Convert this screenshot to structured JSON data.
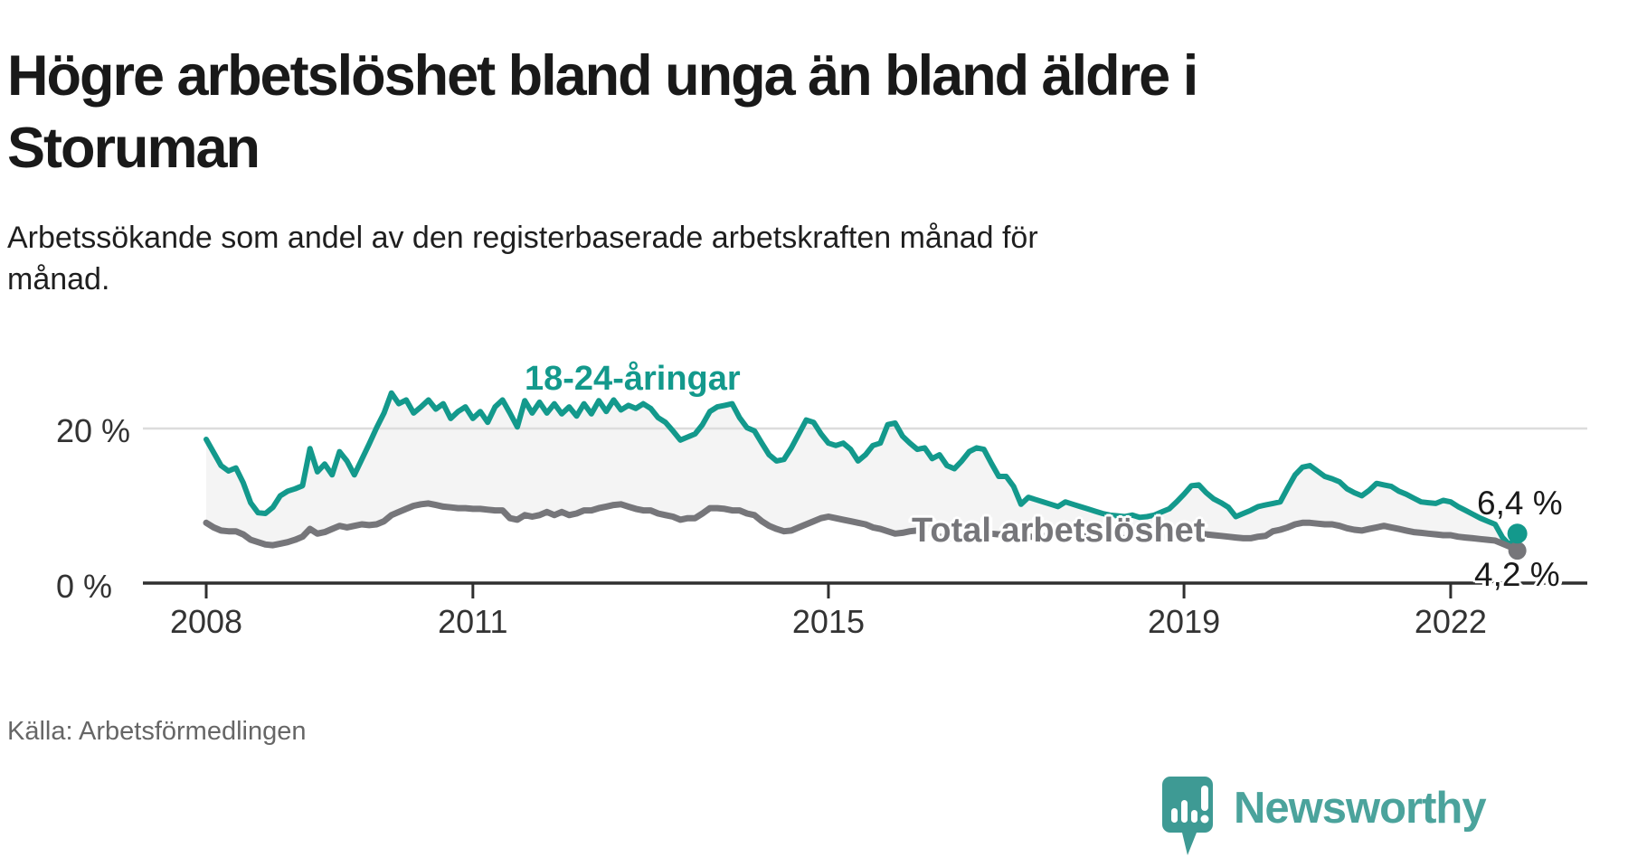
{
  "title": "Högre arbetslöshet bland unga än bland äldre i Storuman",
  "subtitle": "Arbetssökande som andel av den registerbaserade arbetskraften månad för månad.",
  "source": "Källa: Arbetsförmedlingen",
  "logo": {
    "text": "Newsworthy"
  },
  "colors": {
    "youth": "#13998C",
    "total": "#76767A",
    "area_fill": "#F4F4F4",
    "gridline": "#DCDCDC",
    "axis": "#2F2F2F",
    "title_text": "#191919",
    "logo_teal": "#3E9A94"
  },
  "chart_data": {
    "type": "line",
    "title": "Högre arbetslöshet bland unga än bland äldre i Storuman",
    "xlabel": "",
    "ylabel": "Arbetssökande som andel av den registerbaserade arbetskraften",
    "unit": "%",
    "freq": "monthly",
    "start": "2008-01",
    "end": "2022-10",
    "ylim": [
      0,
      26
    ],
    "grid": "single horizontal gridline at 20 %",
    "legend_position": "inline labels on lines",
    "yticks": [
      {
        "label": "0 %",
        "value": 0
      },
      {
        "label": "20 %",
        "value": 20
      }
    ],
    "xticks": [
      {
        "label": "2008",
        "year": 2008
      },
      {
        "label": "2011",
        "year": 2011
      },
      {
        "label": "2015",
        "year": 2015
      },
      {
        "label": "2019",
        "year": 2019
      },
      {
        "label": "2022",
        "year": 2022
      }
    ],
    "series": [
      {
        "name": "18-24-åringar",
        "color": "#13998C",
        "end_label": "6,4 %",
        "end_value": 6.4,
        "values": [
          18.6,
          16.9,
          15.2,
          14.5,
          14.9,
          13.0,
          10.4,
          9.1,
          9.0,
          9.8,
          11.3,
          11.9,
          12.2,
          12.6,
          17.4,
          14.4,
          15.4,
          14.0,
          17.0,
          15.8,
          14.0,
          16.0,
          18.0,
          20.1,
          22.0,
          24.6,
          23.2,
          23.7,
          22.0,
          22.8,
          23.7,
          22.5,
          23.2,
          21.3,
          22.2,
          22.8,
          21.3,
          22.2,
          20.8,
          22.8,
          23.7,
          22.0,
          20.2,
          23.6,
          22.0,
          23.4,
          22.0,
          23.2,
          21.9,
          22.8,
          21.6,
          23.2,
          21.9,
          23.6,
          22.2,
          23.7,
          22.4,
          23.0,
          22.6,
          23.2,
          22.6,
          21.4,
          20.8,
          19.7,
          18.5,
          18.9,
          19.3,
          20.5,
          22.2,
          22.8,
          23.0,
          23.2,
          21.4,
          20.1,
          19.7,
          18.1,
          16.6,
          15.8,
          16.0,
          17.5,
          19.3,
          21.1,
          20.8,
          19.3,
          18.1,
          17.8,
          18.1,
          17.3,
          15.8,
          16.6,
          17.8,
          18.1,
          20.5,
          20.7,
          19.0,
          18.1,
          17.3,
          17.5,
          16.1,
          16.6,
          15.2,
          14.8,
          15.8,
          17.0,
          17.5,
          17.3,
          15.5,
          13.8,
          13.8,
          12.5,
          10.2,
          11.1,
          10.8,
          10.5,
          10.2,
          9.9,
          10.5,
          10.2,
          9.9,
          9.6,
          9.3,
          9.0,
          8.8,
          8.7,
          8.6,
          8.8,
          8.5,
          8.6,
          8.8,
          9.2,
          9.6,
          10.5,
          11.5,
          12.6,
          12.7,
          11.7,
          10.9,
          10.4,
          9.8,
          8.6,
          9.0,
          9.4,
          9.9,
          10.1,
          10.3,
          10.5,
          12.3,
          14.0,
          15.0,
          15.2,
          14.5,
          13.8,
          13.5,
          13.1,
          12.2,
          11.7,
          11.3,
          12.0,
          12.9,
          12.7,
          12.5,
          11.9,
          11.5,
          11.0,
          10.5,
          10.4,
          10.3,
          10.7,
          10.5,
          9.9,
          9.4,
          8.9,
          8.4,
          8.0,
          7.6,
          5.9,
          4.9,
          6.4
        ]
      },
      {
        "name": "Total arbetslöshet",
        "color": "#76767A",
        "end_label": "4,2 %",
        "end_value": 4.2,
        "values": [
          7.8,
          7.2,
          6.8,
          6.7,
          6.7,
          6.3,
          5.6,
          5.3,
          5.0,
          4.9,
          5.1,
          5.3,
          5.6,
          6.0,
          7.0,
          6.4,
          6.6,
          7.0,
          7.4,
          7.2,
          7.4,
          7.6,
          7.5,
          7.6,
          8.0,
          8.8,
          9.2,
          9.6,
          10.0,
          10.2,
          10.3,
          10.1,
          9.9,
          9.8,
          9.7,
          9.7,
          9.6,
          9.6,
          9.5,
          9.4,
          9.4,
          8.4,
          8.2,
          8.8,
          8.6,
          8.8,
          9.2,
          8.8,
          9.2,
          8.8,
          9.0,
          9.4,
          9.4,
          9.7,
          9.9,
          10.1,
          10.2,
          9.9,
          9.6,
          9.4,
          9.4,
          9.0,
          8.8,
          8.6,
          8.2,
          8.4,
          8.4,
          9.0,
          9.7,
          9.7,
          9.6,
          9.4,
          9.4,
          9.0,
          8.8,
          8.0,
          7.4,
          7.0,
          6.7,
          6.8,
          7.2,
          7.6,
          8.0,
          8.4,
          8.6,
          8.4,
          8.2,
          8.0,
          7.8,
          7.6,
          7.2,
          7.0,
          6.7,
          6.4,
          6.5,
          6.7,
          6.8,
          6.7,
          6.2,
          6.0,
          5.9,
          5.8,
          6.0,
          6.2,
          6.4,
          6.5,
          6.4,
          6.3,
          6.3,
          6.2,
          6.1,
          6.0,
          6.0,
          6.1,
          6.0,
          5.9,
          6.0,
          6.1,
          6.2,
          6.2,
          6.2,
          6.1,
          6.0,
          5.9,
          5.8,
          5.9,
          5.8,
          5.7,
          5.8,
          5.9,
          6.0,
          6.1,
          6.2,
          6.3,
          6.4,
          6.3,
          6.2,
          6.1,
          6.0,
          5.9,
          5.8,
          5.8,
          6.0,
          6.1,
          6.7,
          6.9,
          7.2,
          7.6,
          7.8,
          7.8,
          7.7,
          7.6,
          7.6,
          7.4,
          7.1,
          6.9,
          6.8,
          7.0,
          7.2,
          7.4,
          7.2,
          7.0,
          6.8,
          6.6,
          6.5,
          6.4,
          6.3,
          6.2,
          6.2,
          6.0,
          5.9,
          5.8,
          5.7,
          5.6,
          5.5,
          5.1,
          4.7,
          4.2
        ]
      }
    ]
  }
}
